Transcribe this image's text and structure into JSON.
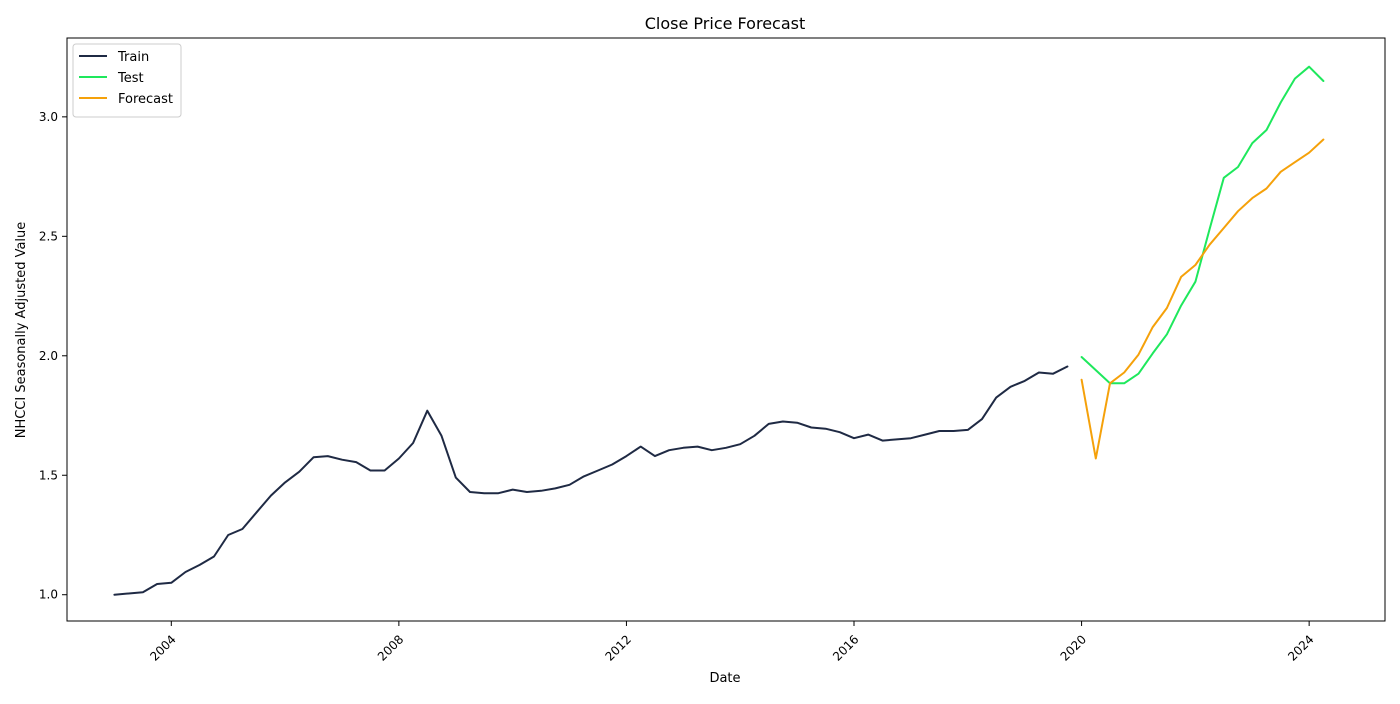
{
  "chart_data": {
    "type": "line",
    "title": "Close Price Forecast",
    "xlabel": "Date",
    "ylabel": "NHCCI Seasonally Adjusted Value",
    "xlim": [
      "2002-03-01",
      "2025-05-01"
    ],
    "ylim": [
      0.89,
      3.33
    ],
    "x_ticks": [
      "2004",
      "2008",
      "2012",
      "2016",
      "2020",
      "2024"
    ],
    "y_ticks": [
      "1.0",
      "1.5",
      "2.0",
      "2.5",
      "3.0"
    ],
    "grid": false,
    "legend_position": "top-left",
    "series": [
      {
        "name": "Train",
        "color": "#1f2a44",
        "points": [
          [
            "2003-01",
            1.0
          ],
          [
            "2003-04",
            1.005
          ],
          [
            "2003-07",
            1.01
          ],
          [
            "2003-10",
            1.045
          ],
          [
            "2004-01",
            1.05
          ],
          [
            "2004-04",
            1.095
          ],
          [
            "2004-07",
            1.125
          ],
          [
            "2004-10",
            1.16
          ],
          [
            "2005-01",
            1.25
          ],
          [
            "2005-04",
            1.275
          ],
          [
            "2005-07",
            1.345
          ],
          [
            "2005-10",
            1.415
          ],
          [
            "2006-01",
            1.47
          ],
          [
            "2006-04",
            1.515
          ],
          [
            "2006-07",
            1.575
          ],
          [
            "2006-10",
            1.58
          ],
          [
            "2007-01",
            1.565
          ],
          [
            "2007-04",
            1.555
          ],
          [
            "2007-07",
            1.52
          ],
          [
            "2007-10",
            1.52
          ],
          [
            "2008-01",
            1.57
          ],
          [
            "2008-04",
            1.635
          ],
          [
            "2008-07",
            1.77
          ],
          [
            "2008-10",
            1.665
          ],
          [
            "2009-01",
            1.49
          ],
          [
            "2009-04",
            1.43
          ],
          [
            "2009-07",
            1.425
          ],
          [
            "2009-10",
            1.425
          ],
          [
            "2010-01",
            1.44
          ],
          [
            "2010-04",
            1.43
          ],
          [
            "2010-07",
            1.435
          ],
          [
            "2010-10",
            1.445
          ],
          [
            "2011-01",
            1.46
          ],
          [
            "2011-04",
            1.495
          ],
          [
            "2011-07",
            1.52
          ],
          [
            "2011-10",
            1.545
          ],
          [
            "2012-01",
            1.58
          ],
          [
            "2012-04",
            1.62
          ],
          [
            "2012-07",
            1.58
          ],
          [
            "2012-10",
            1.605
          ],
          [
            "2013-01",
            1.615
          ],
          [
            "2013-04",
            1.62
          ],
          [
            "2013-07",
            1.605
          ],
          [
            "2013-10",
            1.615
          ],
          [
            "2014-01",
            1.63
          ],
          [
            "2014-04",
            1.665
          ],
          [
            "2014-07",
            1.715
          ],
          [
            "2014-10",
            1.725
          ],
          [
            "2015-01",
            1.72
          ],
          [
            "2015-04",
            1.7
          ],
          [
            "2015-07",
            1.695
          ],
          [
            "2015-10",
            1.68
          ],
          [
            "2016-01",
            1.655
          ],
          [
            "2016-04",
            1.67
          ],
          [
            "2016-07",
            1.645
          ],
          [
            "2016-10",
            1.65
          ],
          [
            "2017-01",
            1.655
          ],
          [
            "2017-04",
            1.67
          ],
          [
            "2017-07",
            1.685
          ],
          [
            "2017-10",
            1.685
          ],
          [
            "2018-01",
            1.69
          ],
          [
            "2018-04",
            1.735
          ],
          [
            "2018-07",
            1.825
          ],
          [
            "2018-10",
            1.87
          ],
          [
            "2019-01",
            1.895
          ],
          [
            "2019-04",
            1.93
          ],
          [
            "2019-07",
            1.925
          ],
          [
            "2019-10",
            1.955
          ]
        ]
      },
      {
        "name": "Test",
        "color": "#1ee85c",
        "points": [
          [
            "2020-01",
            1.995
          ],
          [
            "2020-04",
            1.94
          ],
          [
            "2020-07",
            1.885
          ],
          [
            "2020-10",
            1.885
          ],
          [
            "2021-01",
            1.925
          ],
          [
            "2021-04",
            2.01
          ],
          [
            "2021-07",
            2.09
          ],
          [
            "2021-10",
            2.21
          ],
          [
            "2022-01",
            2.31
          ],
          [
            "2022-04",
            2.53
          ],
          [
            "2022-07",
            2.745
          ],
          [
            "2022-10",
            2.79
          ],
          [
            "2023-01",
            2.89
          ],
          [
            "2023-04",
            2.945
          ],
          [
            "2023-07",
            3.06
          ],
          [
            "2023-10",
            3.16
          ],
          [
            "2024-01",
            3.21
          ],
          [
            "2024-04",
            3.15
          ]
        ]
      },
      {
        "name": "Forecast",
        "color": "#f5a10a",
        "points": [
          [
            "2020-01",
            1.9
          ],
          [
            "2020-04",
            1.57
          ],
          [
            "2020-07",
            1.885
          ],
          [
            "2020-10",
            1.93
          ],
          [
            "2021-01",
            2.005
          ],
          [
            "2021-04",
            2.12
          ],
          [
            "2021-07",
            2.2
          ],
          [
            "2021-10",
            2.33
          ],
          [
            "2022-01",
            2.38
          ],
          [
            "2022-04",
            2.465
          ],
          [
            "2022-07",
            2.535
          ],
          [
            "2022-10",
            2.605
          ],
          [
            "2023-01",
            2.66
          ],
          [
            "2023-04",
            2.7
          ],
          [
            "2023-07",
            2.77
          ],
          [
            "2023-10",
            2.81
          ],
          [
            "2024-01",
            2.85
          ],
          [
            "2024-04",
            2.905
          ]
        ]
      }
    ]
  }
}
